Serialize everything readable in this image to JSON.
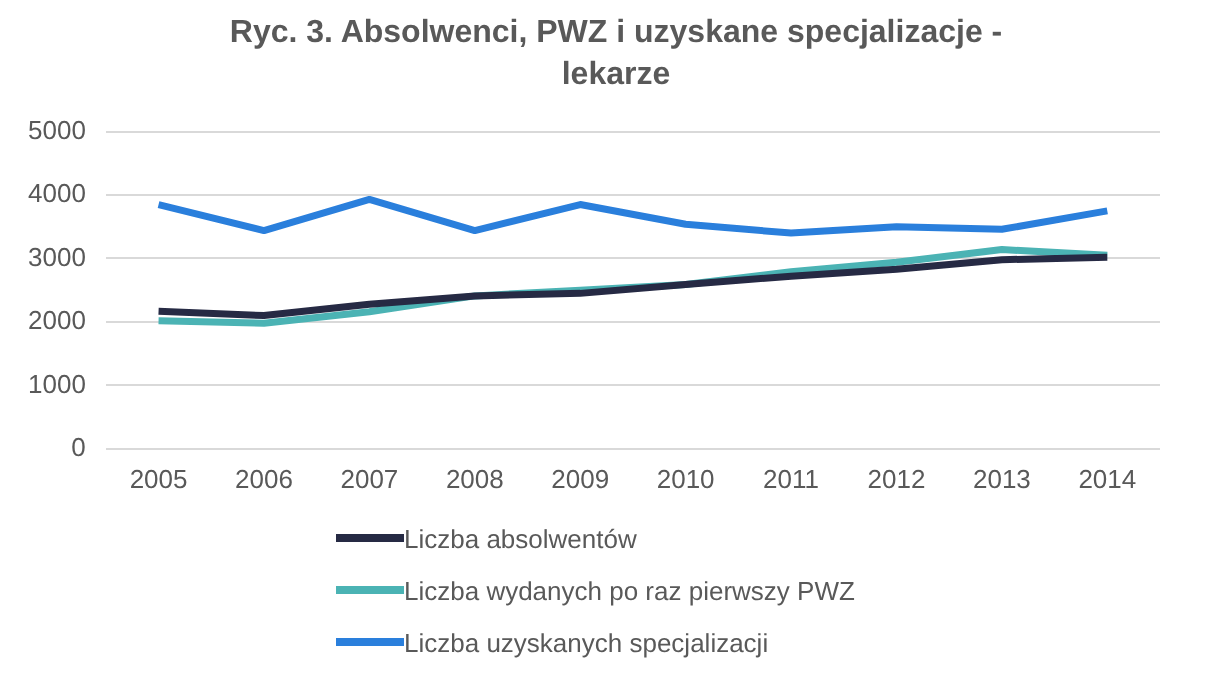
{
  "chart_data": {
    "type": "line",
    "title": "Ryc. 3. Absolwenci, PWZ i uzyskane specjalizacje - lekarze",
    "categories": [
      "2005",
      "2006",
      "2007",
      "2008",
      "2009",
      "2010",
      "2011",
      "2012",
      "2013",
      "2014"
    ],
    "series": [
      {
        "name": "Liczba absolwentów",
        "color": "#262a44",
        "values": [
          2170,
          2100,
          2280,
          2410,
          2450,
          2590,
          2720,
          2830,
          2980,
          3020
        ]
      },
      {
        "name": "Liczba wydanych po raz pierwszy PWZ",
        "color": "#4bb3b4",
        "values": [
          2020,
          1980,
          2160,
          2410,
          2500,
          2590,
          2790,
          2940,
          3140,
          3050
        ]
      },
      {
        "name": "Liczba uzyskanych specjalizacji",
        "color": "#2a7fdc",
        "values": [
          3850,
          3440,
          3930,
          3440,
          3850,
          3540,
          3400,
          3500,
          3460,
          3750
        ]
      }
    ],
    "ylim": [
      0,
      5000
    ],
    "yticks": [
      0,
      1000,
      2000,
      3000,
      4000,
      5000
    ],
    "grid": "y",
    "legend": "bottom",
    "marker": "none",
    "line_style": "solid"
  }
}
